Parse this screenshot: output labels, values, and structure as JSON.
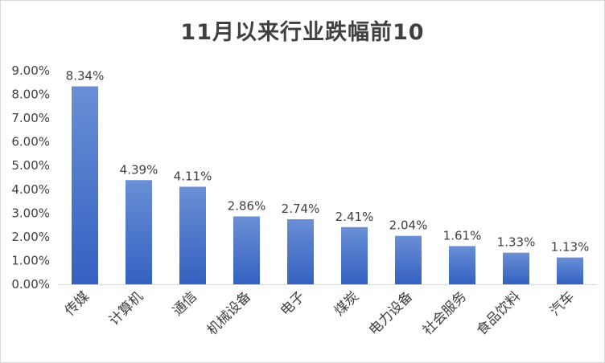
{
  "chart_data": {
    "type": "bar",
    "title": "11月以来行业跌幅前10",
    "xlabel": "",
    "ylabel": "",
    "categories": [
      "传媒",
      "计算机",
      "通信",
      "机械设备",
      "电子",
      "煤炭",
      "电力设备",
      "社会服务",
      "食品饮料",
      "汽车"
    ],
    "values": [
      8.34,
      4.39,
      4.11,
      2.86,
      2.74,
      2.41,
      2.04,
      1.61,
      1.33,
      1.13
    ],
    "value_labels": [
      "8.34%",
      "4.39%",
      "4.11%",
      "2.86%",
      "2.74%",
      "2.41%",
      "2.04%",
      "1.61%",
      "1.33%",
      "1.13%"
    ],
    "ylim": [
      0,
      9
    ],
    "yticks": [
      "0.00%",
      "1.00%",
      "2.00%",
      "3.00%",
      "4.00%",
      "5.00%",
      "6.00%",
      "7.00%",
      "8.00%",
      "9.00%"
    ],
    "grid": false,
    "legend": "none",
    "bar_color_top": "#6a8fd6",
    "bar_color_bottom": "#3461c1",
    "axis_color": "#d9d9d9",
    "text_color": "#404040"
  }
}
